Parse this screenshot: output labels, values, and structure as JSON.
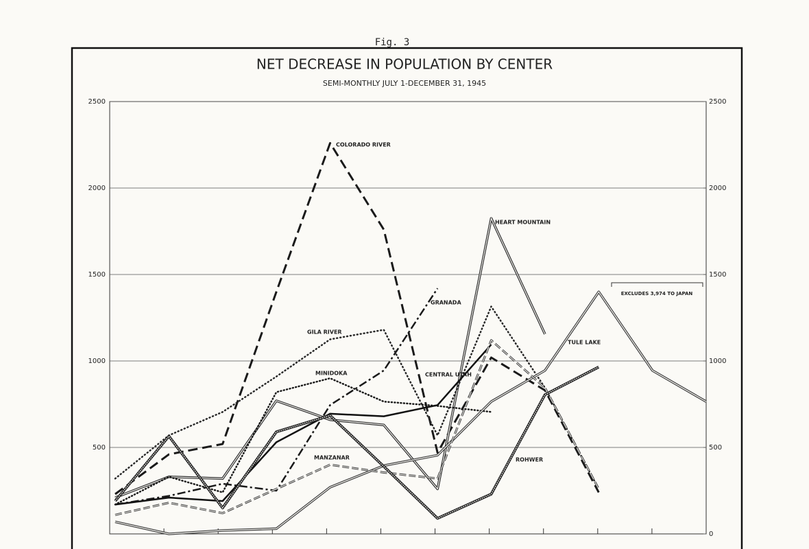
{
  "chart_data": {
    "type": "line",
    "figure_label": "Fig. 3",
    "title": "NET DECREASE IN POPULATION BY CENTER",
    "subtitle": "SEMI-MONTHLY JULY 1-DECEMBER 31, 1945",
    "annotation": "EXCLUDES 3,974 TO JAPAN",
    "categories": [
      null,
      null,
      null,
      null,
      null,
      null,
      null,
      null,
      null,
      null,
      null,
      null
    ],
    "ylim": [
      0,
      2500
    ],
    "yticks": [
      500,
      1000,
      1500,
      2000,
      2500
    ],
    "y2lim": [
      0,
      2500
    ],
    "y2ticks": [
      0,
      500,
      1000,
      1500,
      2000,
      2500
    ],
    "grid": true,
    "series": [
      {
        "name": "COLORADO RIVER",
        "color": "#1a1a1a",
        "values": [
          230,
          460,
          520,
          1400,
          2260,
          1760,
          470,
          1020,
          830,
          240,
          null,
          null
        ]
      },
      {
        "name": "HEART MOUNTAIN",
        "color": "#2a2a2a",
        "values": [
          210,
          330,
          320,
          770,
          660,
          630,
          260,
          1825,
          1155,
          null,
          null,
          null
        ]
      },
      {
        "name": "GRANADA",
        "color": "#1a1a1a",
        "values": [
          170,
          220,
          290,
          250,
          745,
          945,
          1420,
          null,
          null,
          null,
          null,
          null
        ]
      },
      {
        "name": "GILA RIVER",
        "color": "#2a2a2a",
        "values": [
          320,
          570,
          705,
          910,
          1125,
          1180,
          570,
          1315,
          845,
          260,
          null,
          null
        ]
      },
      {
        "name": "MINIDOKA",
        "color": "#1a1a1a",
        "values": [
          170,
          330,
          240,
          820,
          900,
          765,
          740,
          705,
          null,
          null,
          null,
          null
        ]
      },
      {
        "name": "CENTRAL UTAH",
        "color": "#111111",
        "values": [
          170,
          210,
          190,
          530,
          695,
          680,
          745,
          1095,
          null,
          null,
          null,
          null
        ]
      },
      {
        "name": "TULE LAKE",
        "color": "#3a3a3a",
        "values": [
          70,
          0,
          20,
          30,
          270,
          395,
          455,
          765,
          945,
          1400,
          945,
          765
        ]
      },
      {
        "name": "MANZANAR",
        "color": "#3a3a3a",
        "values": [
          110,
          180,
          120,
          260,
          400,
          355,
          320,
          1120,
          845,
          260,
          null,
          null
        ]
      },
      {
        "name": "ROHWER",
        "color": "#2a2a2a",
        "values": [
          190,
          565,
          150,
          590,
          685,
          390,
          90,
          230,
          805,
          965,
          null,
          null
        ]
      }
    ]
  }
}
